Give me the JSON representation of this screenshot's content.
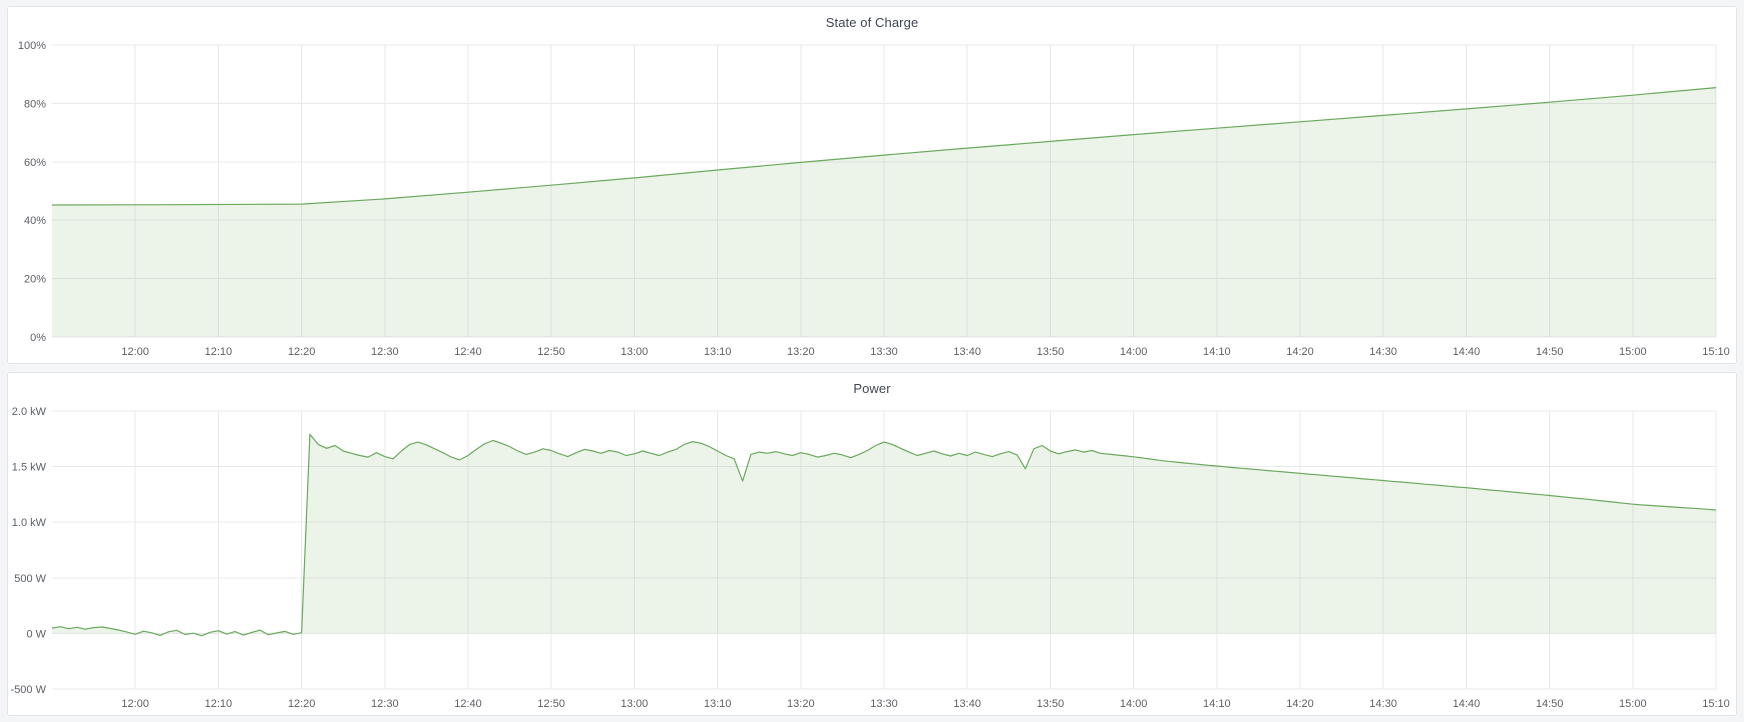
{
  "page": {
    "background": "#f4f5f7",
    "panel_background": "#ffffff"
  },
  "chart_data": [
    {
      "type": "area",
      "title": "State of Charge",
      "legend_position": "none",
      "grid": true,
      "line_color": "#6aa95c",
      "fill_color": "rgba(106,169,92,0.13)",
      "x_domain": [
        710,
        910
      ],
      "y_domain": [
        0,
        100
      ],
      "fill_to": 0,
      "ylabel": "",
      "xlabel": "",
      "x_ticks": [
        {
          "t": 720,
          "label": "12:00"
        },
        {
          "t": 730,
          "label": "12:10"
        },
        {
          "t": 740,
          "label": "12:20"
        },
        {
          "t": 750,
          "label": "12:30"
        },
        {
          "t": 760,
          "label": "12:40"
        },
        {
          "t": 770,
          "label": "12:50"
        },
        {
          "t": 780,
          "label": "13:00"
        },
        {
          "t": 790,
          "label": "13:10"
        },
        {
          "t": 800,
          "label": "13:20"
        },
        {
          "t": 810,
          "label": "13:30"
        },
        {
          "t": 820,
          "label": "13:40"
        },
        {
          "t": 830,
          "label": "13:50"
        },
        {
          "t": 840,
          "label": "14:00"
        },
        {
          "t": 850,
          "label": "14:10"
        },
        {
          "t": 860,
          "label": "14:20"
        },
        {
          "t": 870,
          "label": "14:30"
        },
        {
          "t": 880,
          "label": "14:40"
        },
        {
          "t": 890,
          "label": "14:50"
        },
        {
          "t": 900,
          "label": "15:00"
        },
        {
          "t": 910,
          "label": "15:10"
        }
      ],
      "y_ticks": [
        {
          "v": 0,
          "label": "0%"
        },
        {
          "v": 20,
          "label": "20%"
        },
        {
          "v": 40,
          "label": "40%"
        },
        {
          "v": 60,
          "label": "60%"
        },
        {
          "v": 80,
          "label": "80%"
        },
        {
          "v": 100,
          "label": "100%"
        }
      ],
      "series": [
        {
          "name": "State of Charge",
          "unit": "%",
          "points": [
            [
              710,
              45.2
            ],
            [
              725,
              45.3
            ],
            [
              740,
              45.5
            ],
            [
              750,
              47.3
            ],
            [
              760,
              49.6
            ],
            [
              770,
              52.0
            ],
            [
              780,
              54.5
            ],
            [
              790,
              57.2
            ],
            [
              800,
              59.8
            ],
            [
              810,
              62.3
            ],
            [
              820,
              64.7
            ],
            [
              830,
              67.0
            ],
            [
              840,
              69.3
            ],
            [
              850,
              71.5
            ],
            [
              860,
              73.7
            ],
            [
              870,
              75.9
            ],
            [
              880,
              78.1
            ],
            [
              890,
              80.4
            ],
            [
              900,
              82.8
            ],
            [
              910,
              85.4
            ]
          ]
        }
      ]
    },
    {
      "type": "area",
      "title": "Power",
      "legend_position": "none",
      "grid": true,
      "line_color": "#6aa95c",
      "fill_color": "rgba(106,169,92,0.13)",
      "x_domain": [
        710,
        910
      ],
      "y_domain": [
        -500,
        2000
      ],
      "fill_to": 0,
      "ylabel": "",
      "xlabel": "",
      "x_ticks": [
        {
          "t": 720,
          "label": "12:00"
        },
        {
          "t": 730,
          "label": "12:10"
        },
        {
          "t": 740,
          "label": "12:20"
        },
        {
          "t": 750,
          "label": "12:30"
        },
        {
          "t": 760,
          "label": "12:40"
        },
        {
          "t": 770,
          "label": "12:50"
        },
        {
          "t": 780,
          "label": "13:00"
        },
        {
          "t": 790,
          "label": "13:10"
        },
        {
          "t": 800,
          "label": "13:20"
        },
        {
          "t": 810,
          "label": "13:30"
        },
        {
          "t": 820,
          "label": "13:40"
        },
        {
          "t": 830,
          "label": "13:50"
        },
        {
          "t": 840,
          "label": "14:00"
        },
        {
          "t": 850,
          "label": "14:10"
        },
        {
          "t": 860,
          "label": "14:20"
        },
        {
          "t": 870,
          "label": "14:30"
        },
        {
          "t": 880,
          "label": "14:40"
        },
        {
          "t": 890,
          "label": "14:50"
        },
        {
          "t": 900,
          "label": "15:00"
        },
        {
          "t": 910,
          "label": "15:10"
        }
      ],
      "y_ticks": [
        {
          "v": -500,
          "label": "-500 W"
        },
        {
          "v": 0,
          "label": "0 W"
        },
        {
          "v": 500,
          "label": "500 W"
        },
        {
          "v": 1000,
          "label": "1.0 kW"
        },
        {
          "v": 1500,
          "label": "1.5 kW"
        },
        {
          "v": 2000,
          "label": "2.0 kW"
        }
      ],
      "series": [
        {
          "name": "Power",
          "unit": "W",
          "t0": 710,
          "dt": 1,
          "values": [
            48,
            60,
            42,
            55,
            38,
            52,
            58,
            45,
            30,
            12,
            -8,
            20,
            5,
            -18,
            14,
            28,
            -10,
            2,
            -22,
            10,
            24,
            -6,
            16,
            -15,
            8,
            30,
            -12,
            4,
            18,
            -8,
            6,
            1790,
            1700,
            1665,
            1690,
            1640,
            1620,
            1600,
            1585,
            1625,
            1590,
            1570,
            1640,
            1700,
            1720,
            1695,
            1660,
            1625,
            1585,
            1560,
            1600,
            1655,
            1705,
            1735,
            1710,
            1680,
            1640,
            1610,
            1630,
            1660,
            1645,
            1615,
            1590,
            1625,
            1655,
            1640,
            1620,
            1645,
            1630,
            1600,
            1615,
            1640,
            1620,
            1600,
            1630,
            1655,
            1700,
            1725,
            1710,
            1680,
            1640,
            1600,
            1570,
            1370,
            1610,
            1630,
            1620,
            1635,
            1615,
            1600,
            1625,
            1610,
            1585,
            1600,
            1620,
            1605,
            1580,
            1610,
            1645,
            1690,
            1720,
            1700,
            1665,
            1630,
            1600,
            1620,
            1640,
            1615,
            1595,
            1620,
            1600,
            1630,
            1610,
            1590,
            1615,
            1635,
            1605,
            1480,
            1660,
            1690,
            1640,
            1615,
            1635,
            1650,
            1630,
            1645,
            1620,
            1612,
            1604,
            1596,
            1588,
            1578,
            1568,
            1558,
            1549,
            1541,
            1533,
            1526,
            1519,
            1512,
            1505,
            1498,
            1491,
            1485,
            1478,
            1472,
            1465,
            1459,
            1452,
            1446,
            1440,
            1433,
            1427,
            1420,
            1414,
            1407,
            1401,
            1394,
            1388,
            1381,
            1375,
            1368,
            1362,
            1355,
            1349,
            1342,
            1336,
            1329,
            1323,
            1316,
            1310,
            1303,
            1296,
            1289,
            1282,
            1275,
            1268,
            1261,
            1254,
            1247,
            1240,
            1232,
            1225,
            1217,
            1210,
            1202,
            1194,
            1186,
            1178,
            1170,
            1162,
            1156,
            1151,
            1146,
            1141,
            1136,
            1131,
            1126,
            1121,
            1116,
            1110
          ]
        }
      ]
    }
  ]
}
